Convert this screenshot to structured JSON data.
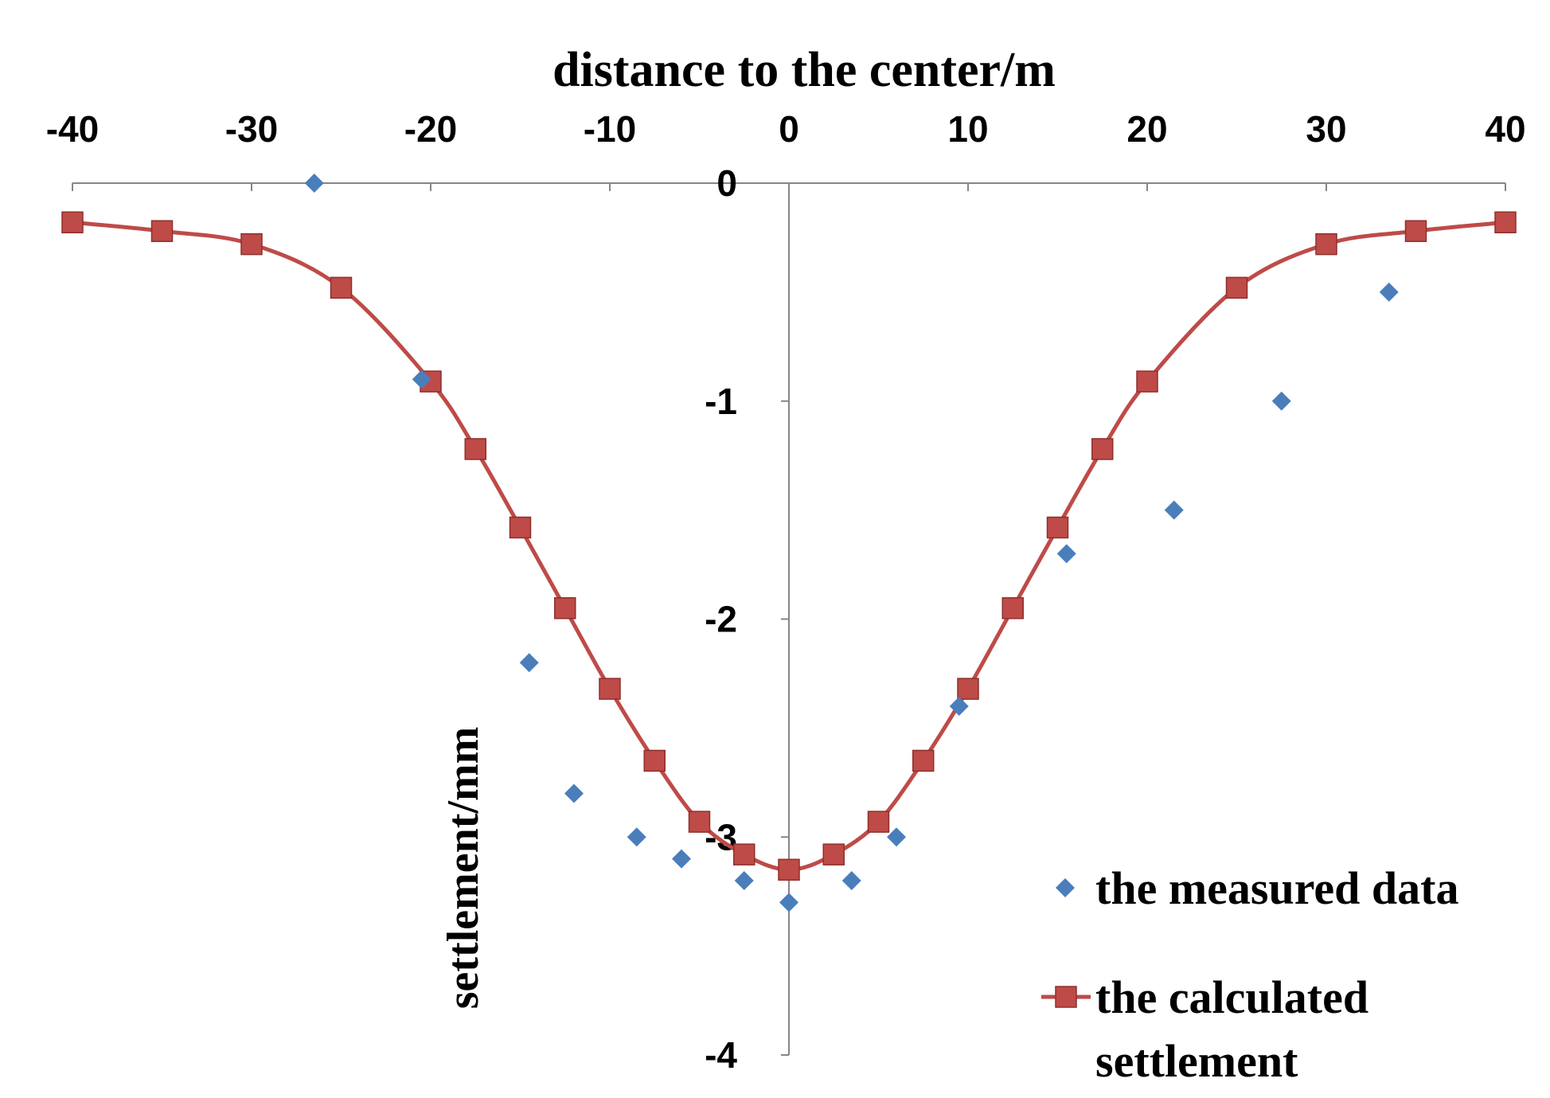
{
  "chart_data": {
    "type": "scatter",
    "title": "",
    "xlabel": "distance to the center/m",
    "ylabel": "settlement/mm",
    "xlim": [
      -40,
      40
    ],
    "ylim": [
      -4,
      0
    ],
    "x_ticks": [
      -40,
      -30,
      -20,
      -10,
      0,
      10,
      20,
      30,
      40
    ],
    "y_ticks": [
      0,
      -1,
      -2,
      -3,
      -4
    ],
    "x_axis_position": "top",
    "grid": false,
    "legend_position": "bottom-right",
    "series": [
      {
        "name": "the measured data",
        "kind": "scatter",
        "marker": "diamond",
        "color": "#4a7ebb",
        "x": [
          -26.5,
          -20.5,
          -14.5,
          -12,
          -8.5,
          -6,
          -2.5,
          0,
          3.5,
          6,
          9.5,
          15.5,
          21.5,
          27.5,
          33.5
        ],
        "y": [
          0,
          -0.9,
          -2.2,
          -2.8,
          -3.0,
          -3.1,
          -3.2,
          -3.3,
          -3.2,
          -3.0,
          -2.4,
          -1.7,
          -1.5,
          -1.0,
          -0.5
        ]
      },
      {
        "name": "the calculated settlement",
        "kind": "line",
        "marker": "square",
        "color": "#be4b48",
        "x": [
          -40,
          -35,
          -30,
          -25,
          -20,
          -17.5,
          -15,
          -12.5,
          -10,
          -7.5,
          -5,
          -2.5,
          0,
          2.5,
          5,
          7.5,
          10,
          12.5,
          15,
          17.5,
          20,
          25,
          30,
          35,
          40
        ],
        "y": [
          -0.18,
          -0.22,
          -0.28,
          -0.48,
          -0.91,
          -1.22,
          -1.58,
          -1.95,
          -2.32,
          -2.65,
          -2.93,
          -3.08,
          -3.15,
          -3.08,
          -2.93,
          -2.65,
          -2.32,
          -1.95,
          -1.58,
          -1.22,
          -0.91,
          -0.48,
          -0.28,
          -0.22,
          -0.18
        ]
      }
    ],
    "legend": {
      "measured_label": "the measured data",
      "calculated_label_line1": "the calculated",
      "calculated_label_line2": "settlement"
    }
  }
}
